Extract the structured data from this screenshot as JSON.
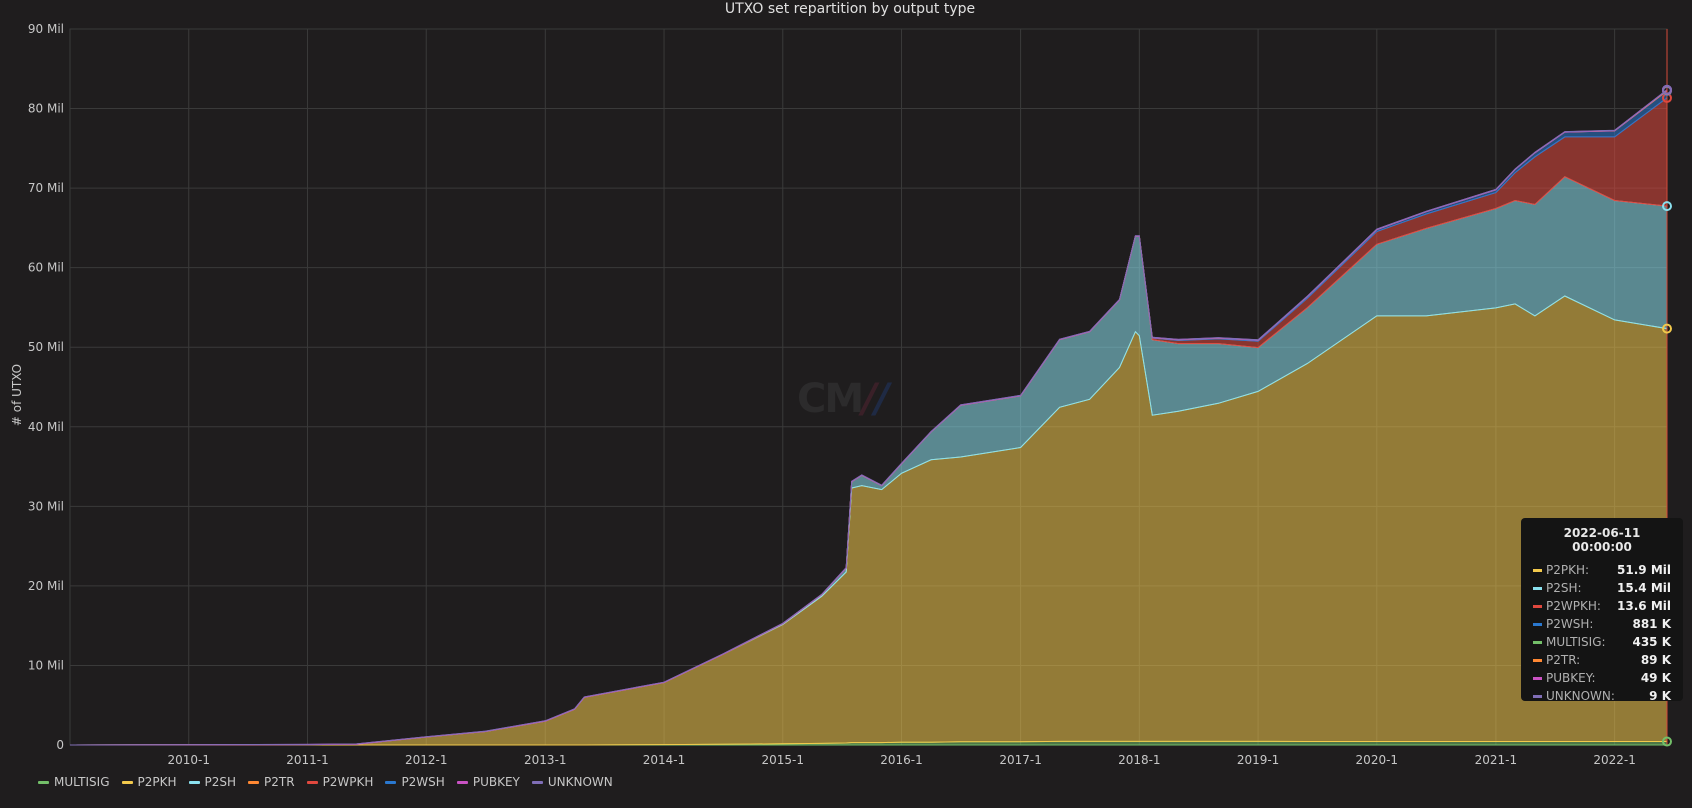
{
  "panel": {
    "title": "UTXO set repartition by output type",
    "ylabel": "# of UTXO",
    "watermark": "CM"
  },
  "colors": {
    "MULTISIG": "#73bf69",
    "P2PKH": "#f2c94c",
    "P2SH": "#8ae0ee",
    "P2TR": "#ff8833",
    "P2WPKH": "#e0483e",
    "P2WSH": "#2a78cf",
    "PUBKEY": "#c952c3",
    "UNKNOWN": "#806eb7"
  },
  "legend": [
    "MULTISIG",
    "P2PKH",
    "P2SH",
    "P2TR",
    "P2WPKH",
    "P2WSH",
    "PUBKEY",
    "UNKNOWN"
  ],
  "tooltip": {
    "time": "2022-06-11 00:00:00",
    "rows": [
      {
        "name": "P2PKH:",
        "value": "51.9 Mil",
        "key": "P2PKH"
      },
      {
        "name": "P2SH:",
        "value": "15.4 Mil",
        "key": "P2SH"
      },
      {
        "name": "P2WPKH:",
        "value": "13.6 Mil",
        "key": "P2WPKH"
      },
      {
        "name": "P2WSH:",
        "value": "881 K",
        "key": "P2WSH"
      },
      {
        "name": "MULTISIG:",
        "value": "435 K",
        "key": "MULTISIG"
      },
      {
        "name": "P2TR:",
        "value": "89 K",
        "key": "P2TR"
      },
      {
        "name": "PUBKEY:",
        "value": "49 K",
        "key": "PUBKEY"
      },
      {
        "name": "UNKNOWN:",
        "value": "9 K",
        "key": "UNKNOWN"
      }
    ]
  },
  "chart_data": {
    "type": "area",
    "stacked": true,
    "title": "UTXO set repartition by output type",
    "ylabel": "# of UTXO",
    "xlabel": "",
    "ylim": [
      0,
      90
    ],
    "y_unit": "Mil",
    "xlim": [
      "2009-01-01",
      "2022-06-11"
    ],
    "x_ticks": [
      "2010-1",
      "2011-1",
      "2012-1",
      "2013-1",
      "2014-1",
      "2015-1",
      "2016-1",
      "2017-1",
      "2018-1",
      "2019-1",
      "2020-1",
      "2021-1",
      "2022-1"
    ],
    "y_ticks": [
      "0",
      "10 Mil",
      "20 Mil",
      "30 Mil",
      "40 Mil",
      "50 Mil",
      "60 Mil",
      "70 Mil",
      "80 Mil",
      "90 Mil"
    ],
    "grid": true,
    "legend_position": "bottom-left",
    "x": [
      "2009-01-01",
      "2010-01-01",
      "2011-01-01",
      "2011-06-01",
      "2012-01-01",
      "2012-07-01",
      "2013-01-01",
      "2013-04-01",
      "2013-05-01",
      "2014-01-01",
      "2014-07-01",
      "2015-01-01",
      "2015-05-01",
      "2015-07-15",
      "2015-08-01",
      "2015-09-01",
      "2015-11-01",
      "2016-01-01",
      "2016-04-01",
      "2016-07-01",
      "2017-01-01",
      "2017-05-01",
      "2017-08-01",
      "2017-11-01",
      "2017-12-20",
      "2018-01-01",
      "2018-02-10",
      "2018-05-01",
      "2018-09-01",
      "2019-01-01",
      "2019-06-01",
      "2020-01-01",
      "2020-06-01",
      "2021-01-01",
      "2021-03-01",
      "2021-05-01",
      "2021-08-01",
      "2022-01-01",
      "2022-06-11"
    ],
    "series": [
      {
        "name": "MULTISIG",
        "values": [
          0,
          0,
          0,
          0,
          0,
          0,
          0,
          0,
          0,
          0.05,
          0.1,
          0.15,
          0.2,
          0.25,
          0.3,
          0.3,
          0.3,
          0.35,
          0.35,
          0.4,
          0.4,
          0.45,
          0.45,
          0.45,
          0.45,
          0.45,
          0.45,
          0.45,
          0.45,
          0.45,
          0.44,
          0.44,
          0.44,
          0.44,
          0.44,
          0.44,
          0.44,
          0.44,
          0.435
        ]
      },
      {
        "name": "P2PKH",
        "values": [
          0,
          0.02,
          0.05,
          0.1,
          1.0,
          1.7,
          3.0,
          4.5,
          6.0,
          7.8,
          11.3,
          15.0,
          18.5,
          21.5,
          32.0,
          32.3,
          31.8,
          33.8,
          35.5,
          35.8,
          37.0,
          42.0,
          43.0,
          47.0,
          51.5,
          51.0,
          41.0,
          41.5,
          42.5,
          44.0,
          47.5,
          53.5,
          53.5,
          54.5,
          55.0,
          53.5,
          56.0,
          53.0,
          51.9
        ]
      },
      {
        "name": "P2SH",
        "values": [
          0,
          0,
          0,
          0,
          0,
          0,
          0,
          0,
          0,
          0,
          0,
          0.1,
          0.2,
          0.5,
          0.8,
          1.3,
          0.5,
          1.2,
          3.5,
          6.5,
          6.5,
          8.5,
          8.5,
          8.5,
          12.0,
          12.5,
          9.5,
          8.5,
          7.5,
          5.5,
          7.0,
          9.0,
          11.0,
          12.5,
          13.0,
          14.0,
          15.0,
          15.0,
          15.4
        ]
      },
      {
        "name": "P2TR",
        "values": [
          0,
          0,
          0,
          0,
          0,
          0,
          0,
          0,
          0,
          0,
          0,
          0,
          0,
          0,
          0,
          0,
          0,
          0,
          0,
          0,
          0,
          0,
          0,
          0,
          0,
          0,
          0,
          0,
          0,
          0,
          0,
          0,
          0,
          0,
          0,
          0,
          0,
          0.02,
          0.089
        ]
      },
      {
        "name": "P2WPKH",
        "values": [
          0,
          0,
          0,
          0,
          0,
          0,
          0,
          0,
          0,
          0,
          0,
          0,
          0,
          0,
          0,
          0,
          0,
          0,
          0,
          0,
          0,
          0,
          0,
          0,
          0,
          0,
          0.2,
          0.4,
          0.6,
          0.8,
          1.2,
          1.6,
          1.8,
          2.0,
          3.5,
          6.0,
          5.0,
          8.0,
          13.6
        ]
      },
      {
        "name": "P2WSH",
        "values": [
          0,
          0,
          0,
          0,
          0,
          0,
          0,
          0,
          0,
          0,
          0,
          0,
          0,
          0,
          0,
          0,
          0,
          0,
          0,
          0,
          0,
          0,
          0,
          0,
          0,
          0,
          0.05,
          0.08,
          0.1,
          0.12,
          0.2,
          0.25,
          0.3,
          0.35,
          0.4,
          0.5,
          0.6,
          0.75,
          0.881
        ]
      },
      {
        "name": "PUBKEY",
        "values": [
          0,
          0.02,
          0.03,
          0.04,
          0.04,
          0.04,
          0.045,
          0.045,
          0.045,
          0.045,
          0.045,
          0.045,
          0.045,
          0.046,
          0.046,
          0.046,
          0.047,
          0.047,
          0.047,
          0.048,
          0.048,
          0.048,
          0.048,
          0.048,
          0.048,
          0.048,
          0.048,
          0.048,
          0.049,
          0.049,
          0.049,
          0.049,
          0.049,
          0.049,
          0.049,
          0.049,
          0.049,
          0.049,
          0.049
        ]
      },
      {
        "name": "UNKNOWN",
        "values": [
          0,
          0,
          0,
          0,
          0.001,
          0.001,
          0.002,
          0.002,
          0.002,
          0.003,
          0.003,
          0.004,
          0.004,
          0.005,
          0.005,
          0.005,
          0.006,
          0.006,
          0.006,
          0.007,
          0.007,
          0.007,
          0.007,
          0.008,
          0.008,
          0.008,
          0.008,
          0.008,
          0.008,
          0.008,
          0.009,
          0.009,
          0.009,
          0.009,
          0.009,
          0.009,
          0.009,
          0.009,
          0.009
        ]
      }
    ],
    "stack_order": [
      "MULTISIG",
      "P2PKH",
      "P2SH",
      "P2WPKH",
      "P2WSH",
      "P2TR",
      "PUBKEY",
      "UNKNOWN"
    ]
  }
}
